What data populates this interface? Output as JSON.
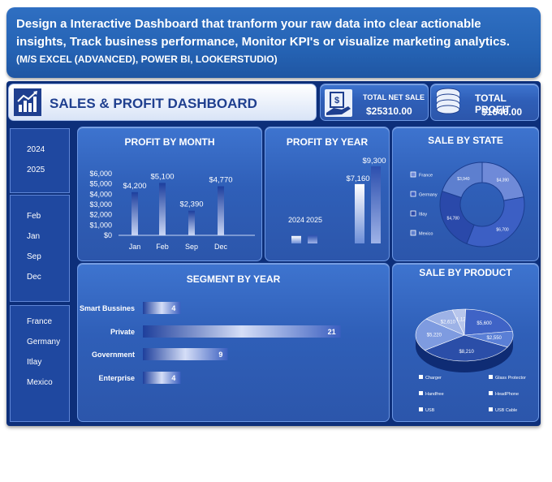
{
  "banner": {
    "line1": "Design a Interactive Dashboard that tranform your raw data into clear actionable",
    "line2": "insights, Track business performance, Monitor KPI's or visualize marketing analytics.",
    "line3": "(M/S EXCEL (ADVANCED), POWER BI, LOOKERSTUDIO)"
  },
  "header": {
    "title": "SALES & PROFIT DASHBOARD",
    "icon": "bar-chart-growth-icon"
  },
  "kpis": {
    "net_sale": {
      "label": "TOTAL NET SALE",
      "value": "$25310.00",
      "icon": "cash-hand-icon"
    },
    "profit": {
      "label": "TOTAL PROFIT",
      "value": "$1646.00",
      "icon": "coin-stack-icon"
    }
  },
  "slicers": {
    "years": [
      "2024",
      "2025"
    ],
    "months": [
      "Feb",
      "Jan",
      "Sep",
      "Dec"
    ],
    "countries": [
      "France",
      "Germany",
      "Itlay",
      "Mexico"
    ]
  },
  "colors": {
    "accent": "#2f5fb8",
    "dark": "#0d2f7a",
    "text": "#ffffff"
  },
  "chart_data": [
    {
      "type": "bar",
      "title": "PROFIT BY MONTH",
      "categories": [
        "Jan",
        "Feb",
        "Sep",
        "Dec"
      ],
      "values": [
        4200,
        5100,
        2390,
        4770
      ],
      "value_labels": [
        "$4,200",
        "$5,100",
        "$2,390",
        "$4,770"
      ],
      "yticks": [
        "$0",
        "$1,000",
        "$2,000",
        "$3,000",
        "$4,000",
        "$5,000",
        "$6,000"
      ],
      "ylim": [
        0,
        6000
      ],
      "grid": false
    },
    {
      "type": "bar",
      "title": "PROFIT BY YEAR",
      "categories": [
        "2024",
        "2025"
      ],
      "series": [
        {
          "values": [
            900,
            1000
          ]
        },
        {
          "values": [
            7160,
            9300
          ]
        }
      ],
      "value_labels": [
        "$7,160",
        "$9,300"
      ]
    },
    {
      "type": "pie",
      "title": "SALE BY STATE",
      "donut": true,
      "labels": [
        "France",
        "Germany",
        "Itlay",
        "Mexico"
      ],
      "values": [
        4390,
        6700,
        4780,
        3940
      ],
      "slice_labels": [
        "$4,390",
        "$6,700",
        "$4,780",
        "$3,940"
      ],
      "legend": "left",
      "colors": [
        "#6f8ad8",
        "#3c5fc4",
        "#2a49aa",
        "#5d7fcf"
      ]
    },
    {
      "type": "bar",
      "title": "SEGMENT BY YEAR",
      "orientation": "horizontal",
      "categories": [
        "Smart Bussines",
        "Private",
        "Government",
        "Enterprise"
      ],
      "values": [
        4,
        21,
        9,
        4
      ],
      "xlim": [
        0,
        22
      ]
    },
    {
      "type": "pie",
      "title": "SALE BY PRODUCT",
      "style": "3d",
      "labels": [
        "Charger",
        "Glass Protector",
        "Handfree",
        "HeadPhone",
        "USB",
        "USB Cable"
      ],
      "values": [
        1120,
        5600,
        2550,
        8210,
        5220,
        2610
      ],
      "slice_labels": [
        "$1,120",
        "$5,600",
        "$2,550",
        "$8,210",
        "$5,220",
        "$2,610"
      ],
      "legend": "bottom",
      "colors": [
        "#b8c6ec",
        "#3f63c6",
        "#5a7fd6",
        "#2b4ea8",
        "#7e9be0",
        "#9db2e6"
      ]
    }
  ]
}
